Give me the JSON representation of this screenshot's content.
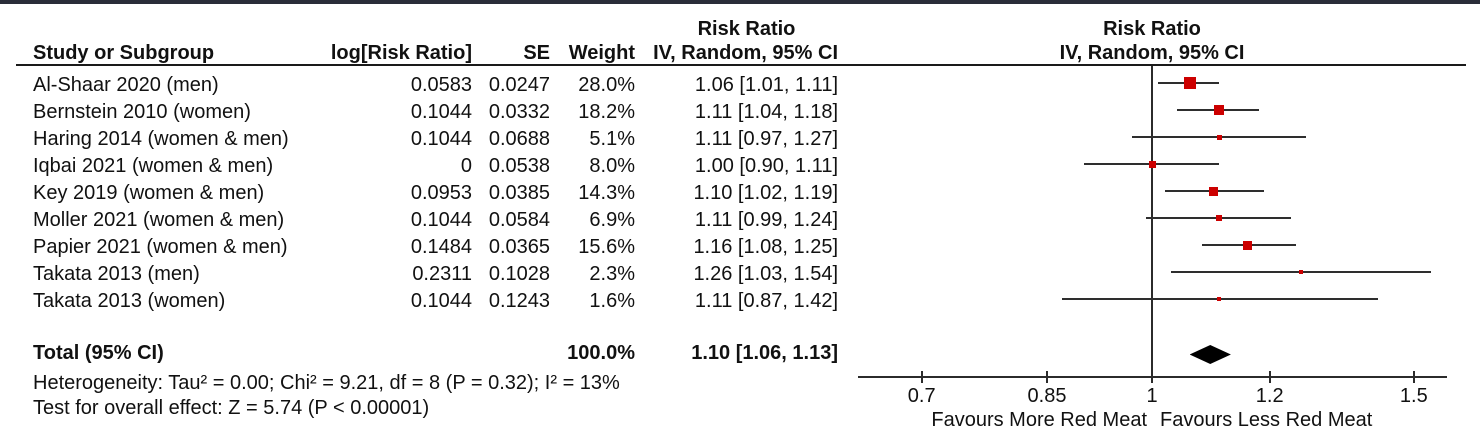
{
  "header": {
    "col_study": "Study or Subgroup",
    "col_log_rr": "log[Risk Ratio]",
    "col_se": "SE",
    "col_weight": "Weight",
    "col_ci": "IV, Random, 95% CI",
    "effect_title_left": "Risk Ratio",
    "plot_title": "Risk Ratio",
    "plot_subtitle": "IV, Random, 95% CI"
  },
  "footnotes": {
    "heterogeneity": "Heterogeneity: Tau² = 0.00; Chi² = 9.21, df = 8 (P = 0.32); I² = 13%",
    "overall_effect": "Test for overall effect: Z = 5.74 (P < 0.00001)"
  },
  "colors": {
    "square": "#CC0000",
    "diamond": "#000000",
    "line": "#2e2e2e",
    "top_bar": "#2a2d39"
  },
  "chart_data": {
    "type": "forest",
    "effect_measure": "Risk Ratio",
    "model": "IV, Random, 95% CI",
    "x_scale": "log",
    "x_ticks": [
      0.7,
      0.85,
      1,
      1.2,
      1.5
    ],
    "x_tick_labels": [
      "0.7",
      "0.85",
      "1",
      "1.2",
      "1.5"
    ],
    "x_axis_range": [
      0.63,
      1.58
    ],
    "favours_left": "Favours More Red Meat",
    "favours_right": "Favours Less Red Meat",
    "studies": [
      {
        "name": "Al-Shaar 2020 (men)",
        "log_rr": "0.0583",
        "se": "0.0247",
        "weight": "28.0%",
        "weight_pct": 28.0,
        "rr": 1.06,
        "ci_low": 1.01,
        "ci_high": 1.11,
        "ci_text": "1.06 [1.01, 1.11]"
      },
      {
        "name": "Bernstein 2010 (women)",
        "log_rr": "0.1044",
        "se": "0.0332",
        "weight": "18.2%",
        "weight_pct": 18.2,
        "rr": 1.11,
        "ci_low": 1.04,
        "ci_high": 1.18,
        "ci_text": "1.11 [1.04, 1.18]"
      },
      {
        "name": "Haring 2014 (women & men)",
        "log_rr": "0.1044",
        "se": "0.0688",
        "weight": "5.1%",
        "weight_pct": 5.1,
        "rr": 1.11,
        "ci_low": 0.97,
        "ci_high": 1.27,
        "ci_text": "1.11 [0.97, 1.27]"
      },
      {
        "name": "Iqbai 2021 (women & men)",
        "log_rr": "0",
        "se": "0.0538",
        "weight": "8.0%",
        "weight_pct": 8.0,
        "rr": 1.0,
        "ci_low": 0.9,
        "ci_high": 1.11,
        "ci_text": "1.00 [0.90, 1.11]"
      },
      {
        "name": "Key 2019 (women & men)",
        "log_rr": "0.0953",
        "se": "0.0385",
        "weight": "14.3%",
        "weight_pct": 14.3,
        "rr": 1.1,
        "ci_low": 1.02,
        "ci_high": 1.19,
        "ci_text": "1.10 [1.02, 1.19]"
      },
      {
        "name": "Moller 2021 (women & men)",
        "log_rr": "0.1044",
        "se": "0.0584",
        "weight": "6.9%",
        "weight_pct": 6.9,
        "rr": 1.11,
        "ci_low": 0.99,
        "ci_high": 1.24,
        "ci_text": "1.11 [0.99, 1.24]"
      },
      {
        "name": "Papier 2021 (women & men)",
        "log_rr": "0.1484",
        "se": "0.0365",
        "weight": "15.6%",
        "weight_pct": 15.6,
        "rr": 1.16,
        "ci_low": 1.08,
        "ci_high": 1.25,
        "ci_text": "1.16 [1.08, 1.25]"
      },
      {
        "name": "Takata 2013 (men)",
        "log_rr": "0.2311",
        "se": "0.1028",
        "weight": "2.3%",
        "weight_pct": 2.3,
        "rr": 1.26,
        "ci_low": 1.03,
        "ci_high": 1.54,
        "ci_text": "1.26 [1.03, 1.54]"
      },
      {
        "name": "Takata 2013 (women)",
        "log_rr": "0.1044",
        "se": "0.1243",
        "weight": "1.6%",
        "weight_pct": 1.6,
        "rr": 1.11,
        "ci_low": 0.87,
        "ci_high": 1.42,
        "ci_text": "1.11 [0.87, 1.42]"
      }
    ],
    "total": {
      "label": "Total (95% CI)",
      "weight": "100.0%",
      "weight_pct": 100.0,
      "rr": 1.1,
      "ci_low": 1.06,
      "ci_high": 1.13,
      "ci_text": "1.10 [1.06, 1.13]"
    }
  }
}
